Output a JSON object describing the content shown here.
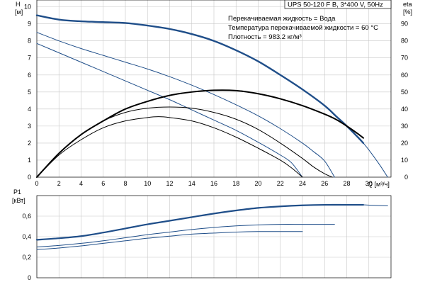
{
  "colors": {
    "head_curve": "#1f4e89",
    "eta_curve": "#000000",
    "grid": "#c8c8c8",
    "axis": "#000000"
  },
  "chart_data": [
    {
      "type": "line",
      "panel": "head_efficiency",
      "title": "UPS 50-120 F B, 3*400 V, 50Hz",
      "info_lines": [
        "Перекачиваемая жидкость = Вода",
        "Температура перекачиваемой жидкости = 60 °C",
        "Плотность = 983.2 кг/м³"
      ],
      "xlabel": "Q [м³/ч]",
      "ylabel_left": [
        "H",
        "[м]"
      ],
      "ylabel_right": [
        "eta",
        "[%]"
      ],
      "xlim": [
        0,
        32
      ],
      "ylim_left": [
        0,
        10.4
      ],
      "ylim_right": [
        0,
        104
      ],
      "x_ticks": [
        "0",
        "2",
        "4",
        "6",
        "8",
        "10",
        "12",
        "14",
        "16",
        "18",
        "20",
        "22",
        "24",
        "26",
        "28",
        "30"
      ],
      "y_ticks_left": [
        "0",
        "1",
        "2",
        "3",
        "4",
        "5",
        "6",
        "7",
        "8",
        "9",
        "10"
      ],
      "y_ticks_right": [
        "0",
        "10",
        "20",
        "30",
        "40",
        "50",
        "60",
        "70",
        "80",
        "90"
      ],
      "grid": true,
      "series": [
        {
          "kind": "head",
          "axis": "left",
          "width": 2.4,
          "points": [
            [
              0,
              9.5
            ],
            [
              2,
              9.25
            ],
            [
              4,
              9.15
            ],
            [
              6,
              9.1
            ],
            [
              8,
              9.05
            ],
            [
              10,
              8.9
            ],
            [
              12,
              8.7
            ],
            [
              14,
              8.4
            ],
            [
              16,
              8.0
            ],
            [
              18,
              7.45
            ],
            [
              20,
              6.8
            ],
            [
              22,
              6.0
            ],
            [
              24,
              5.15
            ],
            [
              26,
              4.2
            ],
            [
              27,
              3.6
            ],
            [
              28,
              3.0
            ],
            [
              29,
              2.35
            ],
            [
              29.5,
              2.0
            ]
          ]
        },
        {
          "kind": "head-thin",
          "axis": "left",
          "width": 1.0,
          "points": [
            [
              29.5,
              2.0
            ],
            [
              30,
              1.6
            ],
            [
              31,
              0.7
            ],
            [
              31.7,
              0
            ]
          ]
        },
        {
          "kind": "head",
          "axis": "left",
          "width": 1.0,
          "points": [
            [
              0,
              8.5
            ],
            [
              2,
              8.0
            ],
            [
              4,
              7.55
            ],
            [
              6,
              7.15
            ],
            [
              8,
              6.75
            ],
            [
              10,
              6.35
            ],
            [
              12,
              5.9
            ],
            [
              14,
              5.4
            ],
            [
              16,
              4.85
            ],
            [
              18,
              4.25
            ],
            [
              20,
              3.6
            ],
            [
              22,
              2.85
            ],
            [
              24,
              2.0
            ],
            [
              25,
              1.5
            ],
            [
              26,
              0.95
            ],
            [
              26.9,
              0
            ]
          ]
        },
        {
          "kind": "head",
          "axis": "left",
          "width": 1.0,
          "points": [
            [
              0,
              7.85
            ],
            [
              2,
              7.3
            ],
            [
              4,
              6.75
            ],
            [
              6,
              6.2
            ],
            [
              8,
              5.65
            ],
            [
              10,
              5.1
            ],
            [
              12,
              4.55
            ],
            [
              14,
              3.95
            ],
            [
              16,
              3.35
            ],
            [
              18,
              2.75
            ],
            [
              20,
              2.05
            ],
            [
              22,
              1.3
            ],
            [
              23,
              0.85
            ],
            [
              24,
              0
            ]
          ]
        },
        {
          "kind": "eta",
          "axis": "right",
          "width": 2.0,
          "points": [
            [
              0,
              0
            ],
            [
              2,
              14
            ],
            [
              4,
              25
            ],
            [
              6,
              33
            ],
            [
              8,
              40
            ],
            [
              10,
              44.5
            ],
            [
              12,
              48
            ],
            [
              14,
              50
            ],
            [
              16,
              51
            ],
            [
              18,
              50.8
            ],
            [
              20,
              49
            ],
            [
              22,
              46
            ],
            [
              24,
              42
            ],
            [
              26,
              37
            ],
            [
              27,
              34
            ],
            [
              28,
              30
            ],
            [
              29,
              25.5
            ],
            [
              29.5,
              23
            ]
          ]
        },
        {
          "kind": "eta",
          "axis": "right",
          "width": 1.0,
          "points": [
            [
              0,
              0
            ],
            [
              2,
              14
            ],
            [
              4,
              25
            ],
            [
              6,
              33
            ],
            [
              8,
              38
            ],
            [
              10,
              40.5
            ],
            [
              12,
              41.2
            ],
            [
              14,
              40.5
            ],
            [
              16,
              38
            ],
            [
              18,
              34
            ],
            [
              20,
              28
            ],
            [
              22,
              20
            ],
            [
              24,
              11
            ],
            [
              25,
              6
            ],
            [
              26,
              2
            ],
            [
              26.7,
              0
            ]
          ]
        },
        {
          "kind": "eta",
          "axis": "right",
          "width": 1.0,
          "points": [
            [
              0,
              0
            ],
            [
              2,
              13
            ],
            [
              4,
              22
            ],
            [
              6,
              29
            ],
            [
              8,
              33
            ],
            [
              10,
              35
            ],
            [
              11,
              35.5
            ],
            [
              12,
              35
            ],
            [
              14,
              33
            ],
            [
              16,
              29
            ],
            [
              18,
              23.5
            ],
            [
              20,
              17
            ],
            [
              22,
              10
            ],
            [
              23,
              5.5
            ],
            [
              24,
              0
            ]
          ]
        }
      ]
    },
    {
      "type": "line",
      "panel": "power",
      "ylabel": [
        "P1",
        "[кВт]"
      ],
      "xlim": [
        0,
        32
      ],
      "ylim": [
        0,
        0.8
      ],
      "y_ticks": [
        "0",
        "0,2",
        "0,4",
        "0,6"
      ],
      "grid": true,
      "series": [
        {
          "kind": "power",
          "width": 2.2,
          "points": [
            [
              0,
              0.37
            ],
            [
              2,
              0.385
            ],
            [
              4,
              0.405
            ],
            [
              6,
              0.44
            ],
            [
              8,
              0.48
            ],
            [
              10,
              0.52
            ],
            [
              12,
              0.555
            ],
            [
              14,
              0.59
            ],
            [
              16,
              0.625
            ],
            [
              18,
              0.655
            ],
            [
              20,
              0.68
            ],
            [
              22,
              0.695
            ],
            [
              24,
              0.705
            ],
            [
              26,
              0.71
            ],
            [
              28,
              0.71
            ],
            [
              29.5,
              0.71
            ]
          ]
        },
        {
          "kind": "power-thin",
          "width": 1.0,
          "points": [
            [
              29.5,
              0.71
            ],
            [
              30.5,
              0.705
            ],
            [
              31.7,
              0.7
            ]
          ]
        },
        {
          "kind": "power",
          "width": 1.0,
          "points": [
            [
              0,
              0.3
            ],
            [
              2,
              0.315
            ],
            [
              4,
              0.335
            ],
            [
              6,
              0.36
            ],
            [
              8,
              0.39
            ],
            [
              10,
              0.42
            ],
            [
              12,
              0.445
            ],
            [
              14,
              0.47
            ],
            [
              16,
              0.49
            ],
            [
              18,
              0.505
            ],
            [
              20,
              0.515
            ],
            [
              22,
              0.52
            ],
            [
              24,
              0.52
            ],
            [
              26,
              0.52
            ],
            [
              26.9,
              0.52
            ]
          ]
        },
        {
          "kind": "power",
          "width": 1.0,
          "points": [
            [
              0,
              0.275
            ],
            [
              2,
              0.29
            ],
            [
              4,
              0.31
            ],
            [
              6,
              0.335
            ],
            [
              8,
              0.36
            ],
            [
              10,
              0.385
            ],
            [
              12,
              0.405
            ],
            [
              14,
              0.425
            ],
            [
              16,
              0.435
            ],
            [
              18,
              0.445
            ],
            [
              20,
              0.45
            ],
            [
              22,
              0.45
            ],
            [
              24,
              0.45
            ]
          ]
        }
      ]
    }
  ]
}
